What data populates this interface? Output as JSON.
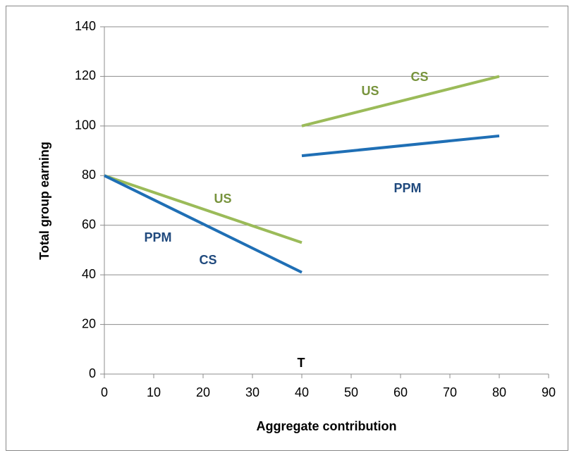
{
  "chart_data": {
    "type": "line",
    "x_label": "Aggregate contribution",
    "y_label": "Total group earning",
    "xlim": [
      0,
      90
    ],
    "xticks": [
      0,
      10,
      20,
      30,
      40,
      50,
      60,
      70,
      80,
      90
    ],
    "ylim": [
      0,
      140
    ],
    "yticks": [
      0,
      20,
      40,
      60,
      80,
      100,
      120,
      140
    ],
    "grid": true,
    "series": [
      {
        "color": "#9bbb59",
        "x": [
          0,
          40
        ],
        "values": [
          80,
          53
        ]
      },
      {
        "color": "#9bbb59",
        "x": [
          40,
          80
        ],
        "values": [
          100,
          120
        ]
      },
      {
        "color": "#1f6fb5",
        "x": [
          0,
          40
        ],
        "values": [
          80,
          41
        ]
      },
      {
        "color": "#1f6fb5",
        "x": [
          40,
          80
        ],
        "values": [
          88,
          96
        ]
      }
    ],
    "annotations": [
      {
        "text": "US",
        "color": "#77933c"
      },
      {
        "text": "CS",
        "color": "#77933c"
      },
      {
        "text": "PPM",
        "color": "#1f497d"
      },
      {
        "text": "US",
        "color": "#77933c"
      },
      {
        "text": "PPM",
        "color": "#1f497d"
      },
      {
        "text": "CS",
        "color": "#1f497d"
      },
      {
        "text": "T",
        "color": "#000000"
      }
    ]
  }
}
